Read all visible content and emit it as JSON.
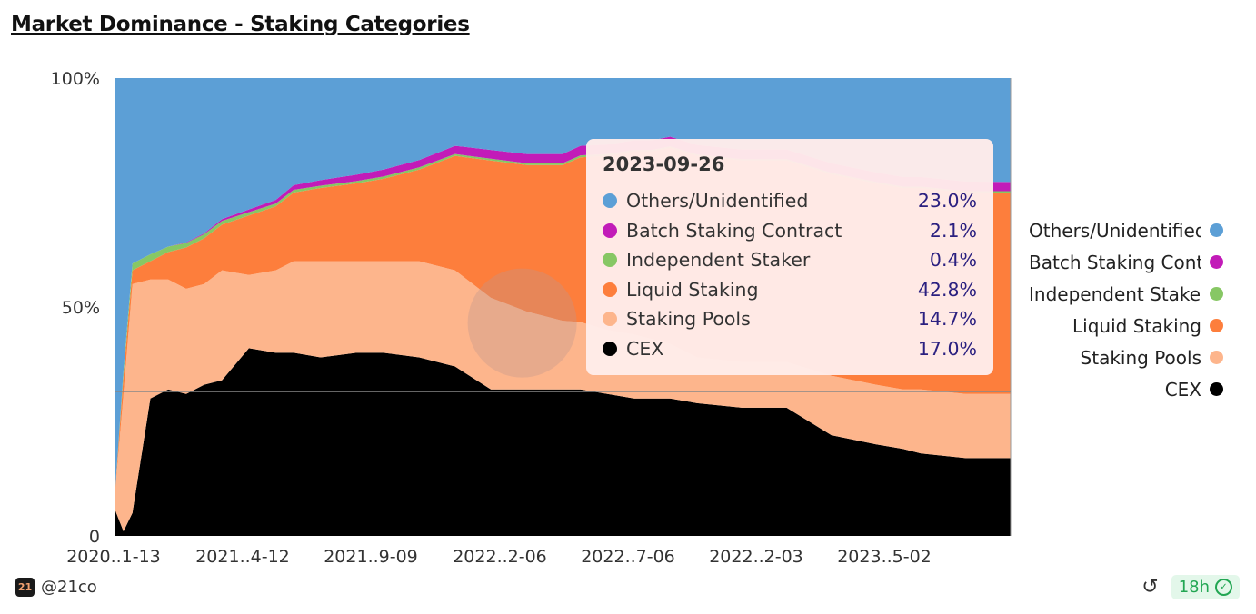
{
  "title": "Market Dominance - Staking Categories",
  "chart_data": {
    "type": "area",
    "stacked": true,
    "normalized": true,
    "title": "Market Dominance - Staking Categories",
    "ylim": [
      0,
      100
    ],
    "y_ticks": [
      "0",
      "50%",
      "100%"
    ],
    "x_ticks": [
      "2020..1-13",
      "2021..4-12",
      "2021..9-09",
      "2022..2-06",
      "2022..7-06",
      "2022..2-03",
      "2023..5-02"
    ],
    "x": [
      0.0,
      0.01,
      0.02,
      0.04,
      0.06,
      0.08,
      0.1,
      0.12,
      0.15,
      0.18,
      0.2,
      0.23,
      0.27,
      0.3,
      0.34,
      0.38,
      0.42,
      0.46,
      0.5,
      0.52,
      0.55,
      0.58,
      0.6,
      0.62,
      0.65,
      0.7,
      0.75,
      0.8,
      0.85,
      0.88,
      0.9,
      0.95,
      1.0
    ],
    "series": [
      {
        "name": "CEX",
        "color": "#000000",
        "values": [
          6,
          1,
          5,
          30,
          32,
          31,
          33,
          34,
          41,
          40,
          40,
          39,
          40,
          40,
          39,
          37,
          32,
          32,
          32,
          32,
          31,
          30,
          30,
          30,
          29,
          28,
          28,
          22,
          20,
          19,
          18,
          17,
          17
        ]
      },
      {
        "name": "Staking Pools",
        "color": "#fdb58c",
        "values": [
          2,
          30,
          50,
          26,
          24,
          23,
          22,
          24,
          16,
          18,
          20,
          21,
          20,
          20,
          21,
          21,
          20,
          17,
          15,
          14.7,
          14,
          14,
          13,
          12,
          10,
          10,
          10,
          13,
          13,
          13,
          14,
          14,
          14
        ]
      },
      {
        "name": "Liquid Staking",
        "color": "#fd7e3c",
        "values": [
          0,
          4,
          3,
          4,
          6,
          9,
          10,
          10,
          13,
          14,
          15,
          16,
          17,
          18,
          20,
          25,
          30,
          32,
          34,
          36,
          38,
          40,
          41,
          42.8,
          44,
          44,
          44,
          44,
          44,
          44,
          44,
          44,
          44
        ]
      },
      {
        "name": "Independent Staker",
        "color": "#87c764",
        "values": [
          0,
          1,
          1.5,
          1.5,
          1.2,
          1,
          0.9,
          0.8,
          0.7,
          0.6,
          0.6,
          0.5,
          0.5,
          0.5,
          0.5,
          0.4,
          0.4,
          0.4,
          0.4,
          0.4,
          0.4,
          0.3,
          0.3,
          0.3,
          0.3,
          0.3,
          0.3,
          0.3,
          0.3,
          0.3,
          0.3,
          0.3,
          0.3
        ]
      },
      {
        "name": "Batch Staking Contract",
        "color": "#c21bb8",
        "values": [
          0,
          0,
          0,
          0,
          0,
          0.1,
          0.2,
          0.4,
          0.6,
          0.8,
          1,
          1.2,
          1.4,
          1.5,
          1.6,
          1.8,
          1.9,
          2,
          2,
          2.1,
          2.1,
          2.1,
          2.1,
          2.1,
          2.1,
          2.1,
          2.1,
          2.1,
          2.1,
          2.1,
          2.1,
          2.1,
          2
        ]
      },
      {
        "name": "Others/Unidentified",
        "color": "#5c9fd6",
        "values": [
          92,
          64,
          40.5,
          38.5,
          36.8,
          35.9,
          33.9,
          30.8,
          28.7,
          26.6,
          23.4,
          22.3,
          21.1,
          20,
          17.9,
          14.8,
          15.7,
          16.6,
          16.6,
          14.8,
          14.5,
          13.6,
          13.6,
          12.8,
          14.6,
          15.6,
          15.6,
          18.6,
          20.6,
          21.6,
          21.6,
          22.6,
          22.7
        ]
      }
    ],
    "tooltip": {
      "date": "2023-09-26",
      "rows": [
        {
          "name": "Others/Unidentified",
          "value": "23.0%",
          "color": "#5c9fd6"
        },
        {
          "name": "Batch Staking Contract",
          "value": "2.1%",
          "color": "#c21bb8"
        },
        {
          "name": "Independent Staker",
          "value": "0.4%",
          "color": "#87c764"
        },
        {
          "name": "Liquid Staking",
          "value": "42.8%",
          "color": "#fd7e3c"
        },
        {
          "name": "Staking Pools",
          "value": "14.7%",
          "color": "#fdb58c"
        },
        {
          "name": "CEX",
          "value": "17.0%",
          "color": "#000000"
        }
      ]
    },
    "legend": [
      {
        "label": "Others/Unidentified",
        "color": "#5c9fd6"
      },
      {
        "label": "Batch Staking Contract",
        "color": "#c21bb8"
      },
      {
        "label": "Independent Staker",
        "color": "#87c764"
      },
      {
        "label": "Liquid Staking",
        "color": "#fd7e3c"
      },
      {
        "label": "Staking Pools",
        "color": "#fdb58c"
      },
      {
        "label": "CEX",
        "color": "#000000"
      }
    ]
  },
  "footer": {
    "author": "@21co",
    "logo_text": "21",
    "freshness": "18h"
  }
}
